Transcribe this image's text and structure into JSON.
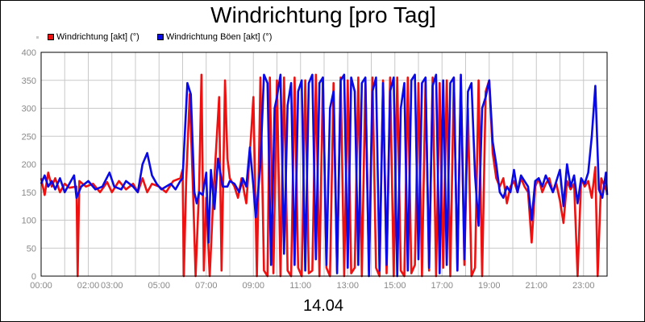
{
  "chart_data": {
    "type": "line",
    "title": "Windrichtung [pro Tag]",
    "date": "14.04",
    "xlabel": "",
    "ylabel": "",
    "ylim": [
      0,
      400
    ],
    "yticks": [
      0,
      50,
      100,
      150,
      200,
      250,
      300,
      350,
      400
    ],
    "xlim": [
      0,
      24
    ],
    "xticks": [
      {
        "hour": 0,
        "label": "00:00"
      },
      {
        "hour": 2,
        "label": "02:00"
      },
      {
        "hour": 3,
        "label": "03:00"
      },
      {
        "hour": 5,
        "label": "05:00"
      },
      {
        "hour": 7,
        "label": "07:00"
      },
      {
        "hour": 9,
        "label": "09:00"
      },
      {
        "hour": 11,
        "label": "11:00"
      },
      {
        "hour": 13,
        "label": "13:00"
      },
      {
        "hour": 15,
        "label": "15:00"
      },
      {
        "hour": 17,
        "label": "17:00"
      },
      {
        "hour": 19,
        "label": "19:00"
      },
      {
        "hour": 21,
        "label": "21:00"
      },
      {
        "hour": 23,
        "label": "23:00"
      }
    ],
    "grid": true,
    "legend_position": "top-left",
    "series": [
      {
        "name": "Windrichtung [akt] (°)",
        "color": "#ee1111",
        "points": [
          [
            0,
            175
          ],
          [
            0.15,
            145
          ],
          [
            0.3,
            185
          ],
          [
            0.45,
            160
          ],
          [
            0.6,
            175
          ],
          [
            0.8,
            150
          ],
          [
            1.0,
            165
          ],
          [
            1.2,
            158
          ],
          [
            1.5,
            160
          ],
          [
            1.55,
            0
          ],
          [
            1.62,
            170
          ],
          [
            1.9,
            160
          ],
          [
            2.2,
            165
          ],
          [
            2.5,
            150
          ],
          [
            2.8,
            168
          ],
          [
            3.0,
            150
          ],
          [
            3.3,
            170
          ],
          [
            3.6,
            155
          ],
          [
            3.9,
            165
          ],
          [
            4.1,
            150
          ],
          [
            4.3,
            175
          ],
          [
            4.5,
            150
          ],
          [
            4.7,
            165
          ],
          [
            5.0,
            160
          ],
          [
            5.3,
            150
          ],
          [
            5.6,
            170
          ],
          [
            5.9,
            175
          ],
          [
            6.0,
            190
          ],
          [
            6.05,
            0
          ],
          [
            6.15,
            170
          ],
          [
            6.3,
            325
          ],
          [
            6.45,
            140
          ],
          [
            6.55,
            0
          ],
          [
            6.7,
            160
          ],
          [
            6.8,
            360
          ],
          [
            6.9,
            10
          ],
          [
            7.0,
            140
          ],
          [
            7.15,
            0
          ],
          [
            7.3,
            140
          ],
          [
            7.55,
            320
          ],
          [
            7.65,
            10
          ],
          [
            7.8,
            350
          ],
          [
            7.9,
            210
          ],
          [
            8.0,
            175
          ],
          [
            8.2,
            160
          ],
          [
            8.35,
            140
          ],
          [
            8.5,
            175
          ],
          [
            8.7,
            130
          ],
          [
            8.9,
            250
          ],
          [
            9.0,
            320
          ],
          [
            9.15,
            0
          ],
          [
            9.3,
            355
          ],
          [
            9.45,
            10
          ],
          [
            9.6,
            0
          ],
          [
            9.7,
            355
          ],
          [
            9.85,
            5
          ],
          [
            10.0,
            350
          ],
          [
            10.15,
            0
          ],
          [
            10.3,
            355
          ],
          [
            10.45,
            10
          ],
          [
            10.6,
            0
          ],
          [
            10.75,
            355
          ],
          [
            10.9,
            15
          ],
          [
            11.05,
            0
          ],
          [
            11.2,
            350
          ],
          [
            11.35,
            5
          ],
          [
            11.5,
            10
          ],
          [
            11.65,
            360
          ],
          [
            11.8,
            0
          ],
          [
            11.95,
            355
          ],
          [
            12.1,
            15
          ],
          [
            12.25,
            0
          ],
          [
            12.4,
            345
          ],
          [
            12.55,
            10
          ],
          [
            12.7,
            355
          ],
          [
            12.85,
            0
          ],
          [
            13.0,
            350
          ],
          [
            13.15,
            5
          ],
          [
            13.3,
            15
          ],
          [
            13.45,
            355
          ],
          [
            13.6,
            0
          ],
          [
            13.75,
            350
          ],
          [
            13.9,
            10
          ],
          [
            14.05,
            355
          ],
          [
            14.2,
            15
          ],
          [
            14.35,
            0
          ],
          [
            14.5,
            350
          ],
          [
            14.65,
            5
          ],
          [
            14.8,
            355
          ],
          [
            14.95,
            0
          ],
          [
            15.1,
            355
          ],
          [
            15.25,
            10
          ],
          [
            15.4,
            0
          ],
          [
            15.55,
            355
          ],
          [
            15.7,
            5
          ],
          [
            15.85,
            20
          ],
          [
            16.0,
            345
          ],
          [
            16.15,
            0
          ],
          [
            16.3,
            350
          ],
          [
            16.45,
            10
          ],
          [
            16.6,
            355
          ],
          [
            16.75,
            0
          ],
          [
            16.9,
            345
          ],
          [
            17.05,
            15
          ],
          [
            17.2,
            350
          ],
          [
            17.35,
            0
          ],
          [
            17.5,
            355
          ],
          [
            17.65,
            10
          ],
          [
            17.8,
            355
          ],
          [
            17.95,
            20
          ],
          [
            18.1,
            300
          ],
          [
            18.25,
            0
          ],
          [
            18.4,
            15
          ],
          [
            18.55,
            350
          ],
          [
            18.7,
            0
          ],
          [
            18.85,
            330
          ],
          [
            19.0,
            350
          ],
          [
            19.15,
            220
          ],
          [
            19.3,
            175
          ],
          [
            19.45,
            160
          ],
          [
            19.6,
            175
          ],
          [
            19.75,
            130
          ],
          [
            19.9,
            160
          ],
          [
            20.05,
            170
          ],
          [
            20.2,
            150
          ],
          [
            20.35,
            175
          ],
          [
            20.5,
            160
          ],
          [
            20.65,
            150
          ],
          [
            20.8,
            60
          ],
          [
            20.95,
            160
          ],
          [
            21.1,
            175
          ],
          [
            21.25,
            150
          ],
          [
            21.4,
            165
          ],
          [
            21.55,
            175
          ],
          [
            21.7,
            150
          ],
          [
            21.85,
            165
          ],
          [
            22.0,
            135
          ],
          [
            22.15,
            95
          ],
          [
            22.3,
            170
          ],
          [
            22.45,
            155
          ],
          [
            22.6,
            165
          ],
          [
            22.75,
            0
          ],
          [
            22.9,
            175
          ],
          [
            23.05,
            160
          ],
          [
            23.2,
            170
          ],
          [
            23.35,
            140
          ],
          [
            23.5,
            195
          ],
          [
            23.6,
            0
          ],
          [
            23.75,
            175
          ],
          [
            23.9,
            160
          ],
          [
            24.0,
            150
          ]
        ]
      },
      {
        "name": "Windrichtung Böen [akt] (°)",
        "color": "#0a0ae6",
        "points": [
          [
            0,
            165
          ],
          [
            0.15,
            180
          ],
          [
            0.3,
            160
          ],
          [
            0.45,
            170
          ],
          [
            0.6,
            155
          ],
          [
            0.8,
            175
          ],
          [
            1.0,
            150
          ],
          [
            1.2,
            165
          ],
          [
            1.4,
            180
          ],
          [
            1.5,
            140
          ],
          [
            1.7,
            160
          ],
          [
            2.0,
            170
          ],
          [
            2.3,
            155
          ],
          [
            2.6,
            160
          ],
          [
            2.9,
            185
          ],
          [
            3.1,
            160
          ],
          [
            3.4,
            155
          ],
          [
            3.6,
            170
          ],
          [
            3.9,
            160
          ],
          [
            4.1,
            150
          ],
          [
            4.3,
            200
          ],
          [
            4.5,
            220
          ],
          [
            4.7,
            180
          ],
          [
            4.9,
            165
          ],
          [
            5.1,
            155
          ],
          [
            5.3,
            160
          ],
          [
            5.5,
            165
          ],
          [
            5.7,
            155
          ],
          [
            5.9,
            170
          ],
          [
            6.0,
            175
          ],
          [
            6.2,
            345
          ],
          [
            6.35,
            325
          ],
          [
            6.5,
            150
          ],
          [
            6.6,
            130
          ],
          [
            6.7,
            150
          ],
          [
            6.85,
            145
          ],
          [
            7.0,
            185
          ],
          [
            7.1,
            60
          ],
          [
            7.2,
            190
          ],
          [
            7.35,
            120
          ],
          [
            7.5,
            210
          ],
          [
            7.7,
            160
          ],
          [
            7.9,
            160
          ],
          [
            8.0,
            170
          ],
          [
            8.2,
            165
          ],
          [
            8.4,
            150
          ],
          [
            8.55,
            175
          ],
          [
            8.7,
            160
          ],
          [
            8.85,
            230
          ],
          [
            9.0,
            160
          ],
          [
            9.1,
            105
          ],
          [
            9.2,
            150
          ],
          [
            9.3,
            200
          ],
          [
            9.45,
            360
          ],
          [
            9.6,
            345
          ],
          [
            9.75,
            20
          ],
          [
            9.9,
            300
          ],
          [
            10.0,
            320
          ],
          [
            10.15,
            360
          ],
          [
            10.3,
            40
          ],
          [
            10.45,
            305
          ],
          [
            10.6,
            345
          ],
          [
            10.75,
            20
          ],
          [
            10.9,
            330
          ],
          [
            11.05,
            350
          ],
          [
            11.2,
            10
          ],
          [
            11.35,
            345
          ],
          [
            11.5,
            360
          ],
          [
            11.65,
            30
          ],
          [
            11.8,
            345
          ],
          [
            11.95,
            355
          ],
          [
            12.1,
            20
          ],
          [
            12.25,
            300
          ],
          [
            12.4,
            330
          ],
          [
            12.55,
            5
          ],
          [
            12.7,
            350
          ],
          [
            12.85,
            360
          ],
          [
            13.0,
            15
          ],
          [
            13.15,
            355
          ],
          [
            13.3,
            330
          ],
          [
            13.45,
            20
          ],
          [
            13.6,
            345
          ],
          [
            13.75,
            355
          ],
          [
            13.9,
            0
          ],
          [
            14.05,
            330
          ],
          [
            14.2,
            355
          ],
          [
            14.35,
            10
          ],
          [
            14.5,
            345
          ],
          [
            14.65,
            20
          ],
          [
            14.8,
            330
          ],
          [
            14.95,
            355
          ],
          [
            15.1,
            0
          ],
          [
            15.25,
            300
          ],
          [
            15.4,
            345
          ],
          [
            15.55,
            10
          ],
          [
            15.7,
            350
          ],
          [
            15.85,
            360
          ],
          [
            16.0,
            30
          ],
          [
            16.15,
            345
          ],
          [
            16.3,
            355
          ],
          [
            16.45,
            15
          ],
          [
            16.6,
            340
          ],
          [
            16.75,
            360
          ],
          [
            16.9,
            5
          ],
          [
            17.05,
            350
          ],
          [
            17.2,
            20
          ],
          [
            17.35,
            345
          ],
          [
            17.5,
            355
          ],
          [
            17.65,
            10
          ],
          [
            17.8,
            360
          ],
          [
            17.95,
            30
          ],
          [
            18.1,
            330
          ],
          [
            18.25,
            345
          ],
          [
            18.4,
            180
          ],
          [
            18.55,
            90
          ],
          [
            18.7,
            300
          ],
          [
            18.85,
            320
          ],
          [
            19.0,
            350
          ],
          [
            19.15,
            240
          ],
          [
            19.3,
            200
          ],
          [
            19.45,
            150
          ],
          [
            19.6,
            140
          ],
          [
            19.75,
            160
          ],
          [
            19.9,
            150
          ],
          [
            20.05,
            190
          ],
          [
            20.2,
            150
          ],
          [
            20.35,
            180
          ],
          [
            20.5,
            170
          ],
          [
            20.65,
            160
          ],
          [
            20.8,
            100
          ],
          [
            20.95,
            170
          ],
          [
            21.1,
            175
          ],
          [
            21.25,
            160
          ],
          [
            21.4,
            180
          ],
          [
            21.55,
            165
          ],
          [
            21.7,
            150
          ],
          [
            21.85,
            170
          ],
          [
            22.0,
            190
          ],
          [
            22.15,
            125
          ],
          [
            22.3,
            200
          ],
          [
            22.45,
            160
          ],
          [
            22.6,
            180
          ],
          [
            22.75,
            130
          ],
          [
            22.9,
            175
          ],
          [
            23.05,
            165
          ],
          [
            23.2,
            185
          ],
          [
            23.35,
            250
          ],
          [
            23.5,
            340
          ],
          [
            23.65,
            155
          ],
          [
            23.8,
            140
          ],
          [
            23.95,
            185
          ],
          [
            24.0,
            145
          ]
        ]
      }
    ]
  }
}
